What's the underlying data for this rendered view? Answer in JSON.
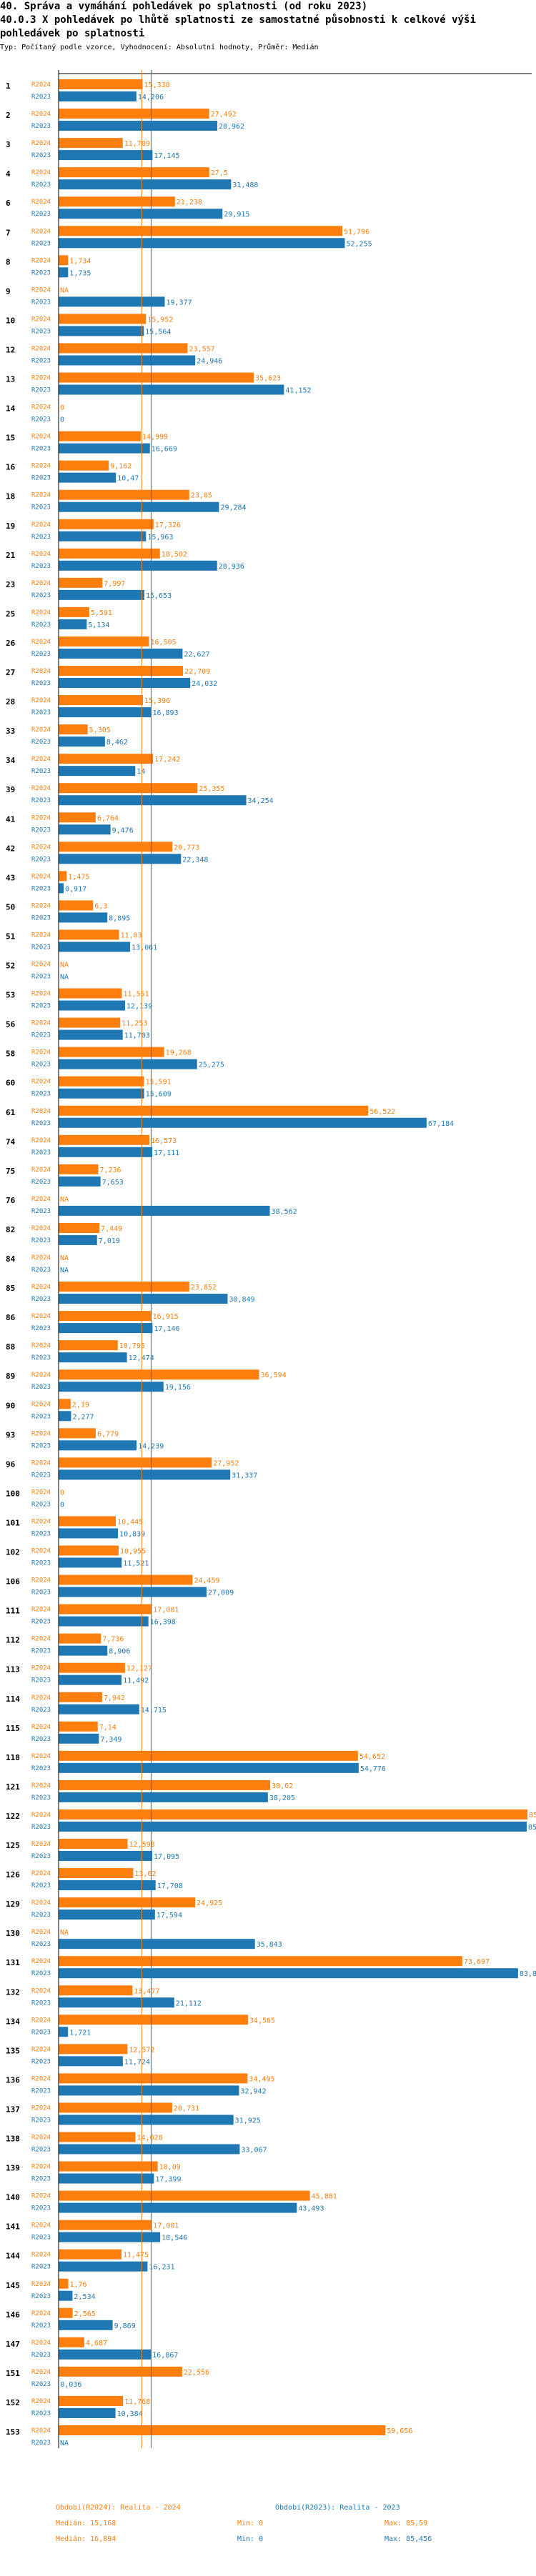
{
  "title_line1": "40. Správa a vymáhání pohledávek po splatnosti (od roku 2023)",
  "title_line2": "40.0.3 X pohledávek po lhůtě splatnosti ze samostatné působnosti k celkové výši pohledávek po splatnosti",
  "subtitle": "Typ: Počítaný podle vzorce, Vyhodnocení: Absolutní hodnoty, Průměr: Medián",
  "colors": {
    "r2024": "#ff7f0e",
    "r2023": "#1f77b4",
    "axis": "#000000"
  },
  "chart_data": {
    "type": "bar",
    "orientation": "horizontal",
    "xlim": [
      0,
      85.59
    ],
    "series": [
      {
        "key": "R2024",
        "name": "Obdobi(R2024): Realita - 2024",
        "label": "R2024",
        "color": "#ff7f0e"
      },
      {
        "key": "R2023",
        "name": "Obdobi(R2023): Realita - 2023",
        "label": "R2023",
        "color": "#1f77b4"
      }
    ],
    "groups": [
      {
        "id": "1",
        "r2024": "15,338",
        "r2023": "14,206"
      },
      {
        "id": "2",
        "r2024": "27,492",
        "r2023": "28,962"
      },
      {
        "id": "3",
        "r2024": "11,709",
        "r2023": "17,145"
      },
      {
        "id": "4",
        "r2024": "27,5",
        "r2023": "31,488"
      },
      {
        "id": "6",
        "r2024": "21,238",
        "r2023": "29,915"
      },
      {
        "id": "7",
        "r2024": "51,796",
        "r2023": "52,255"
      },
      {
        "id": "8",
        "r2024": "1,734",
        "r2023": "1,735"
      },
      {
        "id": "9",
        "r2024": "NA",
        "r2023": "19,377"
      },
      {
        "id": "10",
        "r2024": "15,952",
        "r2023": "15,564"
      },
      {
        "id": "12",
        "r2024": "23,557",
        "r2023": "24,946"
      },
      {
        "id": "13",
        "r2024": "35,623",
        "r2023": "41,152"
      },
      {
        "id": "14",
        "r2024": "0",
        "r2023": "0"
      },
      {
        "id": "15",
        "r2024": "14,999",
        "r2023": "16,669"
      },
      {
        "id": "16",
        "r2024": "9,162",
        "r2023": "10,47"
      },
      {
        "id": "18",
        "r2024": "23,85",
        "r2023": "29,284"
      },
      {
        "id": "19",
        "r2024": "17,326",
        "r2023": "15,963"
      },
      {
        "id": "21",
        "r2024": "18,502",
        "r2023": "28,936"
      },
      {
        "id": "23",
        "r2024": "7,997",
        "r2023": "15,653"
      },
      {
        "id": "25",
        "r2024": "5,591",
        "r2023": "5,134"
      },
      {
        "id": "26",
        "r2024": "16,505",
        "r2023": "22,627"
      },
      {
        "id": "27",
        "r2024": "22,709",
        "r2023": "24,032"
      },
      {
        "id": "28",
        "r2024": "15,396",
        "r2023": "16,893"
      },
      {
        "id": "33",
        "r2024": "5,305",
        "r2023": "8,462"
      },
      {
        "id": "34",
        "r2024": "17,242",
        "r2023": "14"
      },
      {
        "id": "39",
        "r2024": "25,355",
        "r2023": "34,254"
      },
      {
        "id": "41",
        "r2024": "6,764",
        "r2023": "9,476"
      },
      {
        "id": "42",
        "r2024": "20,773",
        "r2023": "22,348"
      },
      {
        "id": "43",
        "r2024": "1,475",
        "r2023": "0,917"
      },
      {
        "id": "50",
        "r2024": "6,3",
        "r2023": "8,895"
      },
      {
        "id": "51",
        "r2024": "11,03",
        "r2023": "13,061"
      },
      {
        "id": "52",
        "r2024": "NA",
        "r2023": "NA"
      },
      {
        "id": "53",
        "r2024": "11,551",
        "r2023": "12,139"
      },
      {
        "id": "56",
        "r2024": "11,253",
        "r2023": "11,703"
      },
      {
        "id": "58",
        "r2024": "19,268",
        "r2023": "25,275"
      },
      {
        "id": "60",
        "r2024": "15,591",
        "r2023": "15,609"
      },
      {
        "id": "61",
        "r2024": "56,522",
        "r2023": "67,184"
      },
      {
        "id": "74",
        "r2024": "16,573",
        "r2023": "17,111"
      },
      {
        "id": "75",
        "r2024": "7,236",
        "r2023": "7,653"
      },
      {
        "id": "76",
        "r2024": "NA",
        "r2023": "38,562"
      },
      {
        "id": "82",
        "r2024": "7,449",
        "r2023": "7,019"
      },
      {
        "id": "84",
        "r2024": "NA",
        "r2023": "NA"
      },
      {
        "id": "85",
        "r2024": "23,852",
        "r2023": "30,849"
      },
      {
        "id": "86",
        "r2024": "16,915",
        "r2023": "17,146"
      },
      {
        "id": "88",
        "r2024": "10,795",
        "r2023": "12,474"
      },
      {
        "id": "89",
        "r2024": "36,594",
        "r2023": "19,156"
      },
      {
        "id": "90",
        "r2024": "2,19",
        "r2023": "2,277"
      },
      {
        "id": "93",
        "r2024": "6,779",
        "r2023": "14,239"
      },
      {
        "id": "96",
        "r2024": "27,952",
        "r2023": "31,337"
      },
      {
        "id": "100",
        "r2024": "0",
        "r2023": "0"
      },
      {
        "id": "101",
        "r2024": "10,445",
        "r2023": "10,839"
      },
      {
        "id": "102",
        "r2024": "10,955",
        "r2023": "11,521"
      },
      {
        "id": "106",
        "r2024": "24,459",
        "r2023": "27,009"
      },
      {
        "id": "111",
        "r2024": "17,001",
        "r2023": "16,398"
      },
      {
        "id": "112",
        "r2024": "7,736",
        "r2023": "8,906"
      },
      {
        "id": "113",
        "r2024": "12,127",
        "r2023": "11,492"
      },
      {
        "id": "114",
        "r2024": "7,942",
        "r2023": "14,715"
      },
      {
        "id": "115",
        "r2024": "7,14",
        "r2023": "7,349"
      },
      {
        "id": "118",
        "r2024": "54,652",
        "r2023": "54,776"
      },
      {
        "id": "121",
        "r2024": "38,62",
        "r2023": "38,205"
      },
      {
        "id": "122",
        "r2024": "85,59",
        "r2023": "85,456"
      },
      {
        "id": "125",
        "r2024": "12,598",
        "r2023": "17,095"
      },
      {
        "id": "126",
        "r2024": "13,62",
        "r2023": "17,708"
      },
      {
        "id": "129",
        "r2024": "24,925",
        "r2023": "17,594"
      },
      {
        "id": "130",
        "r2024": "NA",
        "r2023": "35,843"
      },
      {
        "id": "131",
        "r2024": "73,697",
        "r2023": "83,881"
      },
      {
        "id": "132",
        "r2024": "13,477",
        "r2023": "21,112"
      },
      {
        "id": "134",
        "r2024": "34,565",
        "r2023": "1,721"
      },
      {
        "id": "135",
        "r2024": "12,572",
        "r2023": "11,724"
      },
      {
        "id": "136",
        "r2024": "34,495",
        "r2023": "32,942"
      },
      {
        "id": "137",
        "r2024": "20,731",
        "r2023": "31,925"
      },
      {
        "id": "138",
        "r2024": "14,028",
        "r2023": "33,067"
      },
      {
        "id": "139",
        "r2024": "18,09",
        "r2023": "17,399"
      },
      {
        "id": "140",
        "r2024": "45,881",
        "r2023": "43,493"
      },
      {
        "id": "141",
        "r2024": "17,001",
        "r2023": "18,546"
      },
      {
        "id": "144",
        "r2024": "11,475",
        "r2023": "16,231"
      },
      {
        "id": "145",
        "r2024": "1,76",
        "r2023": "2,534"
      },
      {
        "id": "146",
        "r2024": "2,565",
        "r2023": "9,869"
      },
      {
        "id": "147",
        "r2024": "4,687",
        "r2023": "16,867"
      },
      {
        "id": "151",
        "r2024": "22,556",
        "r2023": "0,036"
      },
      {
        "id": "152",
        "r2024": "11,768",
        "r2023": "10,384"
      },
      {
        "id": "153",
        "r2024": "59,656",
        "r2023": "NA"
      }
    ],
    "medians": {
      "r2024": 15.168,
      "r2023": 16.894
    }
  },
  "legend": {
    "r2024": {
      "name": "Obdobi(R2024): Realita - 2024",
      "median": "Medián: 15,168",
      "min": "Min: 0",
      "max": "Max: 85,59"
    },
    "r2023": {
      "name": "Obdobi(R2023): Realita - 2023",
      "median": "Medián: 16,894",
      "min": "Min: 0",
      "max": "Max: 85,456"
    }
  }
}
